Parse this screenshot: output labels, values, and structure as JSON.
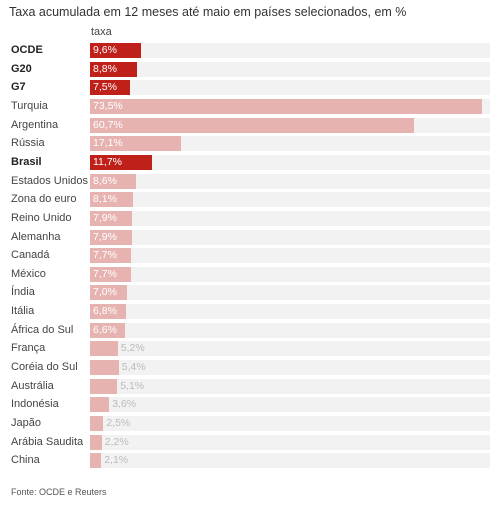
{
  "title": "Taxa acumulada em 12 meses até maio em países selecionados, em %",
  "column_header": "taxa",
  "source": "Fonte: OCDE e Reuters",
  "colors": {
    "highlight": "#c0201a",
    "normal": "#e6b3b1",
    "track": "#f2f2f2",
    "value_inside": "#ffffff",
    "value_outside": "#bbbbbb"
  },
  "chart_data": {
    "type": "bar",
    "orientation": "horizontal",
    "title": "Taxa acumulada em 12 meses até maio em países selecionados, em %",
    "xlim": [
      0,
      75
    ],
    "categories": [
      "OCDE",
      "G20",
      "G7",
      "Turquia",
      "Argentina",
      "Rússia",
      "Brasil",
      "Estados Unidos",
      "Zona do euro",
      "Reino Unido",
      "Alemanha",
      "Canadá",
      "México",
      "Índia",
      "Itália",
      "África do Sul",
      "França",
      "Coréia do Sul",
      "Austrália",
      "Indonésia",
      "Japão",
      "Arábia Saudita",
      "China"
    ],
    "values": [
      9.6,
      8.8,
      7.5,
      73.5,
      60.7,
      17.1,
      11.7,
      8.6,
      8.1,
      7.9,
      7.9,
      7.7,
      7.7,
      7.0,
      6.8,
      6.6,
      5.2,
      5.4,
      5.1,
      3.6,
      2.5,
      2.2,
      2.1
    ],
    "value_labels": [
      "9,6%",
      "8,8%",
      "7,5%",
      "73,5%",
      "60,7%",
      "17,1%",
      "11,7%",
      "8,6%",
      "8,1%",
      "7,9%",
      "7,9%",
      "7,7%",
      "7,7%",
      "7,0%",
      "6,8%",
      "6,6%",
      "5,2%",
      "5,4%",
      "5,1%",
      "3,6%",
      "2,5%",
      "2,2%",
      "2,1%"
    ],
    "highlighted": [
      "OCDE",
      "G20",
      "G7",
      "Brasil"
    ]
  }
}
